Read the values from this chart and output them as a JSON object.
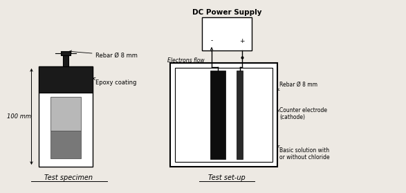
{
  "bg_color": "#ede9e3",
  "title_left": "Test specimen",
  "title_right": "Test set-up",
  "label_rebar_left": "Rebar Ø 8 mm",
  "label_epoxy": "Epoxy coating",
  "label_100mm": "100 mm",
  "label_dc": "DC Power Supply",
  "label_electrons": "Electrons flow",
  "label_rebar_right": "Rebar Ø 8 mm",
  "label_counter": "Counter electrode\n(cathode)",
  "label_basic": "Basic solution with\nor without chloride",
  "font_size": 6.5
}
